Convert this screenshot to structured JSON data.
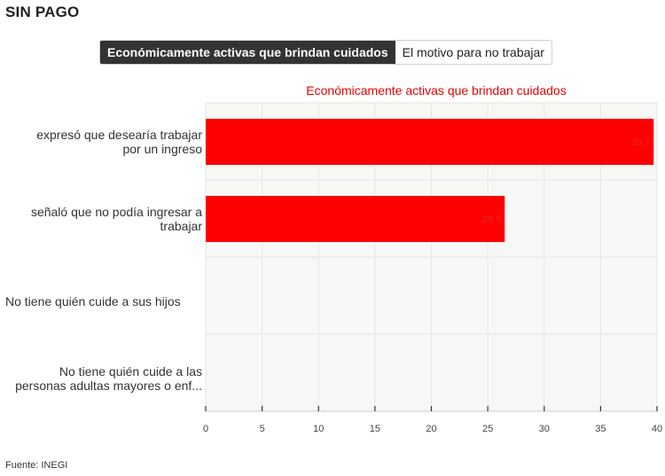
{
  "header": {
    "title": "SIN PAGO"
  },
  "tabs": [
    {
      "label": "Económicamente activas que brindan cuidados",
      "active": true
    },
    {
      "label": "El motivo para no trabajar",
      "active": false
    }
  ],
  "chart_data": {
    "type": "bar",
    "orientation": "horizontal",
    "title": "Económicamente activas que brindan cuidados",
    "categories": [
      [
        "expresó que desearía trabajar",
        "por un ingreso"
      ],
      [
        "señaló que no podía ingresar a",
        "trabajar"
      ],
      [
        "No tiene quién cuide a sus hijos"
      ],
      [
        "No tiene quién cuide a las",
        "personas adultas mayores o enf..."
      ]
    ],
    "values": [
      39.7,
      26.5,
      null,
      null
    ],
    "data_labels": [
      "39.7",
      "26.5",
      "",
      ""
    ],
    "xlim": [
      0,
      40
    ],
    "x_ticks": [
      "0",
      "5",
      "10",
      "15",
      "20",
      "25",
      "30",
      "35",
      "40"
    ],
    "grid": true,
    "bar_color": "#ff0000",
    "title_color": "#e60000"
  },
  "footer": {
    "source": "Fuente: INEGI"
  }
}
